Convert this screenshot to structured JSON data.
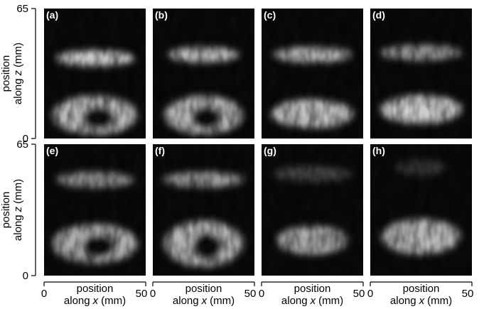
{
  "figure": {
    "panels": [
      "(a)",
      "(b)",
      "(c)",
      "(d)",
      "(e)",
      "(f)",
      "(g)",
      "(h)"
    ],
    "y_axis": {
      "line1": "position",
      "line2_pre": "along",
      "line2_var": "z",
      "line2_unit": "(mm)",
      "ticks": [
        0,
        65
      ]
    },
    "x_axis": {
      "line1": "position",
      "line2_pre": "along",
      "line2_var": "x",
      "line2_unit": "(mm)",
      "ticks": [
        0,
        50
      ]
    }
  }
}
